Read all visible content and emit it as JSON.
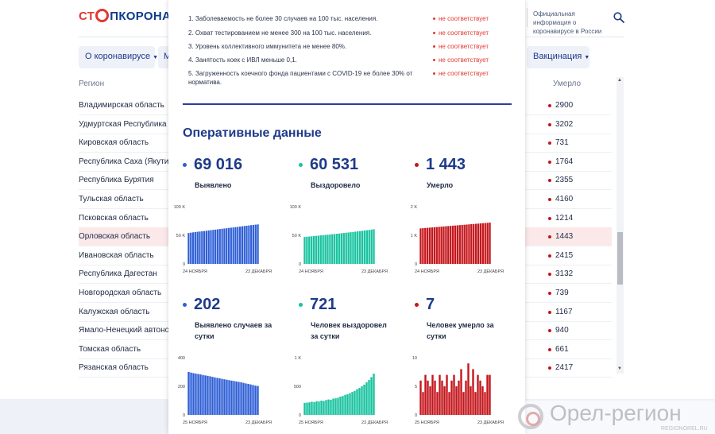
{
  "header": {
    "logo_part1": "СТ",
    "logo_part2": "ПКОРОНАВИ",
    "official_text": "Официальная информация о коронавирусе в России"
  },
  "nav": {
    "about": "О коронавирусе",
    "m_partial": "М",
    "vaccination": "Вакцинация"
  },
  "table": {
    "col_region": "Регион",
    "col_died": "Умерло",
    "rows": [
      {
        "region": "Владимирская область",
        "died": "2900"
      },
      {
        "region": "Удмуртская Республика",
        "died": "3202"
      },
      {
        "region": "Кировская область",
        "died": "731"
      },
      {
        "region": "Республика Саха (Якутия)",
        "died": "1764"
      },
      {
        "region": "Республика Бурятия",
        "died": "2355"
      },
      {
        "region": "Тульская область",
        "died": "4160"
      },
      {
        "region": "Псковская область",
        "died": "1214"
      },
      {
        "region": "Орловская область",
        "died": "1443"
      },
      {
        "region": "Ивановская область",
        "died": "2415"
      },
      {
        "region": "Республика Дагестан",
        "died": "3132"
      },
      {
        "region": "Новгородская область",
        "died": "739"
      },
      {
        "region": "Калужская область",
        "died": "1167"
      },
      {
        "region": "Ямало-Ненецкий автоном",
        "died": "940"
      },
      {
        "region": "Томская область",
        "died": "661"
      },
      {
        "region": "Рязанская область",
        "died": "2417"
      }
    ]
  },
  "criteria": [
    {
      "text": "1. Заболеваемость не более 30 случаев на 100 тыс. населения.",
      "status": "не соответствует"
    },
    {
      "text": "2. Охват тестированием не менее 300 на 100 тыс. населения.",
      "status": "не соответствует"
    },
    {
      "text": "3. Уровень коллективного иммунитета не менее 80%.",
      "status": "не соответствует"
    },
    {
      "text": "4. Занятость коек с ИВЛ меньше 0,1.",
      "status": "не соответствует"
    },
    {
      "text": "5. Загруженность коечного фонда пациентами с COVID-19 не более 30% от норматива.",
      "status": "не соответствует"
    }
  ],
  "operational": {
    "title": "Оперативные данные",
    "stats": [
      {
        "value": "69 016",
        "label": "Выявлено",
        "color": "#2f5fd6"
      },
      {
        "value": "60 531",
        "label": "Выздоровело",
        "color": "#19c3a0"
      },
      {
        "value": "1 443",
        "label": "Умерло",
        "color": "#c4161c"
      },
      {
        "value": "202",
        "label": "Выявлено случаев за сутки",
        "color": "#2f5fd6"
      },
      {
        "value": "721",
        "label": "Человек выздоровел за сутки",
        "color": "#19c3a0"
      },
      {
        "value": "7",
        "label": "Человек умерло за сутки",
        "color": "#c4161c"
      }
    ]
  },
  "chart_data": [
    {
      "type": "bar",
      "color": "#2f5fd6",
      "ylim": [
        0,
        100000
      ],
      "yticks": [
        "100 K",
        "50 K",
        "0"
      ],
      "x_start": "24 НОЯБРЯ",
      "x_end": "23 ДЕКАБРЯ",
      "values": [
        54000,
        54600,
        55100,
        55600,
        56100,
        56600,
        57000,
        57500,
        58000,
        58500,
        59000,
        59400,
        59900,
        60400,
        60900,
        61400,
        61800,
        62300,
        62800,
        63300,
        63700,
        64200,
        64700,
        65200,
        65700,
        66200,
        66700,
        67200,
        67700,
        68200,
        68600,
        69016
      ]
    },
    {
      "type": "bar",
      "color": "#19c3a0",
      "ylim": [
        0,
        100000
      ],
      "yticks": [
        "100 K",
        "50 K",
        "0"
      ],
      "x_start": "24 НОЯБРЯ",
      "x_end": "23 ДЕКАБРЯ",
      "values": [
        47000,
        47400,
        47800,
        48200,
        48600,
        49000,
        49400,
        49800,
        50200,
        50600,
        51000,
        51400,
        51900,
        52300,
        52700,
        53100,
        53600,
        54000,
        54500,
        54900,
        55400,
        55800,
        56300,
        56800,
        57300,
        57800,
        58300,
        58800,
        59300,
        59800,
        60531
      ]
    },
    {
      "type": "bar",
      "color": "#c4161c",
      "ylim": [
        0,
        2000
      ],
      "yticks": [
        "2 K",
        "1 K",
        "0"
      ],
      "x_start": "24 НОЯБРЯ",
      "x_end": "23 ДЕКАБРЯ",
      "values": [
        1240,
        1248,
        1255,
        1262,
        1268,
        1275,
        1282,
        1288,
        1295,
        1302,
        1308,
        1315,
        1322,
        1328,
        1335,
        1342,
        1348,
        1355,
        1362,
        1368,
        1375,
        1382,
        1388,
        1395,
        1402,
        1408,
        1415,
        1422,
        1428,
        1435,
        1443
      ]
    },
    {
      "type": "bar",
      "color": "#2f5fd6",
      "ylim": [
        0,
        400
      ],
      "yticks": [
        "400",
        "200",
        "0"
      ],
      "x_start": "25 НОЯБРЯ",
      "x_end": "23 ДЕКАБРЯ",
      "values": [
        300,
        296,
        292,
        289,
        286,
        283,
        279,
        276,
        273,
        270,
        266,
        262,
        259,
        256,
        252,
        249,
        246,
        243,
        240,
        237,
        234,
        231,
        228,
        224,
        220,
        217,
        213,
        209,
        205,
        202
      ]
    },
    {
      "type": "bar",
      "color": "#19c3a0",
      "ylim": [
        0,
        1000
      ],
      "yticks": [
        "1 K",
        "500",
        "0"
      ],
      "x_start": "25 НОЯБРЯ",
      "x_end": "23 ДЕКАБРЯ",
      "values": [
        210,
        215,
        220,
        230,
        225,
        240,
        235,
        250,
        245,
        260,
        270,
        265,
        285,
        290,
        300,
        320,
        330,
        350,
        360,
        380,
        400,
        420,
        450,
        470,
        500,
        530,
        570,
        610,
        660,
        721
      ]
    },
    {
      "type": "bar",
      "color": "#c4161c",
      "ylim": [
        0,
        10
      ],
      "yticks": [
        "10",
        "5",
        "0"
      ],
      "x_start": "25 НОЯБРЯ",
      "x_end": "23 ДЕКАБРЯ",
      "values": [
        6,
        4,
        7,
        6,
        5,
        7,
        6,
        4,
        7,
        6,
        5,
        7,
        4,
        6,
        7,
        5,
        6,
        8,
        4,
        6,
        9,
        5,
        8,
        4,
        7,
        6,
        5,
        4,
        7,
        7
      ]
    }
  ],
  "watermark": {
    "text": "Орел-регион",
    "sub": "REGIONOREL.RU"
  }
}
